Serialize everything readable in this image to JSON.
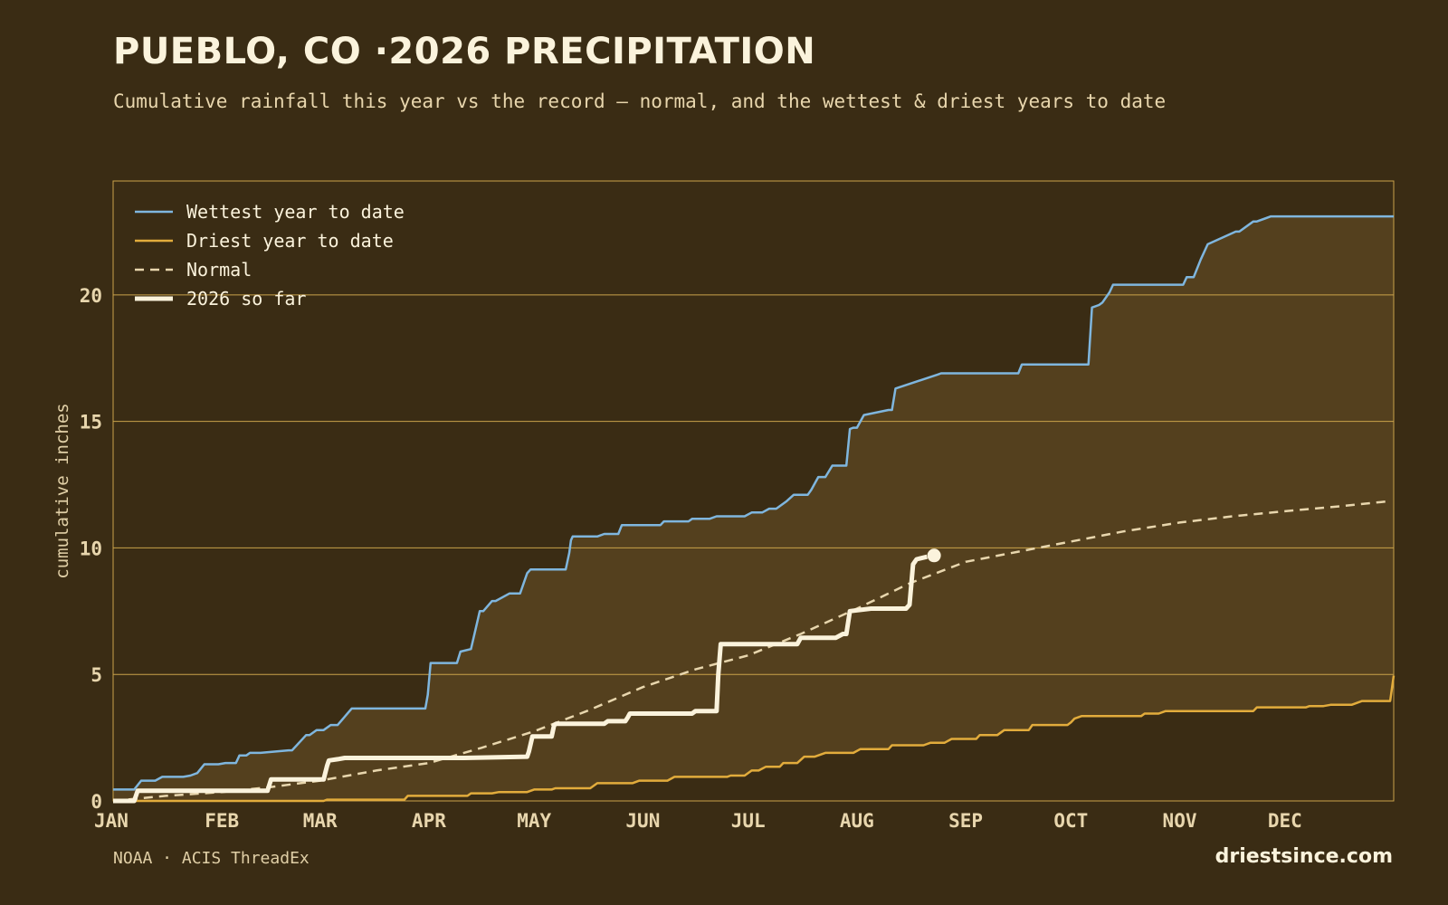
{
  "title": "PUEBLO, CO ·2026 PRECIPITATION",
  "subtitle": "Cumulative rainfall this year vs the record — normal, and the wettest & driest years to date",
  "source": "NOAA · ACIS ThreadEx",
  "brand": "driestsince.com",
  "colors": {
    "background": "#3a2c14",
    "band_fill": "#54401e",
    "grid": "#c9a24a",
    "wettest": "#7fb6de",
    "driest": "#e2ac3c",
    "normal": "#e8d6ad",
    "current": "#fbf3dc"
  },
  "chart_data": {
    "type": "line",
    "ylabel": "cumulative inches",
    "ylim": [
      0,
      24.5
    ],
    "yticks": [
      0,
      5,
      10,
      15,
      20
    ],
    "xlim": [
      0,
      365
    ],
    "month_labels": [
      "JAN",
      "FEB",
      "MAR",
      "APR",
      "MAY",
      "JUN",
      "JUL",
      "AUG",
      "SEP",
      "OCT",
      "NOV",
      "DEC"
    ],
    "month_start_days": [
      0,
      31,
      59,
      90,
      120,
      151,
      181,
      212,
      243,
      273,
      304,
      334
    ],
    "grid": "horizontal",
    "legend_position": "top-left",
    "shaded_band": "between driest and wettest",
    "series": [
      {
        "name": "Wettest year to date",
        "style": "solid",
        "x": [
          0,
          6,
          8,
          12,
          14,
          20,
          22,
          24,
          26,
          30,
          32,
          35,
          36,
          38,
          39,
          40,
          42,
          50,
          51,
          55,
          56,
          58,
          60,
          62,
          64,
          68,
          70,
          72,
          74,
          76,
          78,
          80,
          89,
          89.7,
          90.5,
          98,
          99,
          102,
          104,
          104.5,
          105.5,
          108,
          109,
          113,
          116,
          118,
          119,
          129,
          130,
          130.5,
          131,
          138,
          140,
          144,
          145,
          156,
          157,
          164,
          165,
          170,
          172,
          180,
          182,
          185,
          187,
          189,
          192,
          194,
          198,
          199,
          201,
          203,
          205,
          209,
          210,
          211,
          212,
          214,
          221,
          222,
          223,
          235,
          236,
          258,
          259,
          278,
          279,
          281,
          282,
          284,
          285,
          305,
          306,
          308,
          310,
          312,
          320,
          321,
          325,
          326,
          330,
          365
        ],
        "y": [
          0.45,
          0.45,
          0.8,
          0.8,
          0.95,
          0.95,
          1.0,
          1.1,
          1.45,
          1.45,
          1.5,
          1.5,
          1.8,
          1.8,
          1.9,
          1.9,
          1.9,
          2.0,
          2.0,
          2.6,
          2.6,
          2.8,
          2.8,
          3.0,
          3.0,
          3.65,
          3.65,
          3.65,
          3.65,
          3.65,
          3.65,
          3.65,
          3.65,
          4.2,
          5.45,
          5.45,
          5.9,
          6.0,
          7.2,
          7.5,
          7.5,
          7.9,
          7.9,
          8.2,
          8.2,
          9.0,
          9.15,
          9.15,
          9.8,
          10.3,
          10.45,
          10.45,
          10.55,
          10.55,
          10.9,
          10.9,
          11.05,
          11.05,
          11.15,
          11.15,
          11.25,
          11.25,
          11.4,
          11.4,
          11.55,
          11.55,
          11.85,
          12.1,
          12.1,
          12.3,
          12.8,
          12.8,
          13.25,
          13.25,
          14.7,
          14.75,
          14.75,
          15.25,
          15.45,
          15.45,
          16.3,
          16.85,
          16.9,
          16.9,
          17.25,
          17.25,
          19.5,
          19.6,
          19.7,
          20.1,
          20.4,
          20.4,
          20.7,
          20.7,
          21.4,
          22.0,
          22.5,
          22.5,
          22.9,
          22.9,
          23.1,
          23.1
        ]
      },
      {
        "name": "Driest year to date",
        "style": "solid",
        "x": [
          0,
          60,
          61,
          83,
          84,
          101,
          102,
          108,
          110,
          118,
          120,
          125,
          126,
          136,
          138,
          148,
          150,
          158,
          160,
          175,
          176,
          180,
          182,
          184,
          186,
          190,
          191,
          195,
          197,
          200,
          203,
          211,
          213,
          221,
          222,
          231,
          233,
          237,
          239,
          246,
          247,
          252,
          254,
          261,
          262,
          272,
          273,
          274,
          276,
          293,
          294,
          298,
          300,
          325,
          326,
          340,
          341,
          345,
          347,
          353,
          356,
          364,
          365
        ],
        "y": [
          0,
          0,
          0.05,
          0.05,
          0.2,
          0.2,
          0.3,
          0.3,
          0.35,
          0.35,
          0.45,
          0.45,
          0.5,
          0.5,
          0.7,
          0.7,
          0.8,
          0.8,
          0.95,
          0.95,
          1.0,
          1.0,
          1.2,
          1.2,
          1.35,
          1.35,
          1.5,
          1.5,
          1.75,
          1.75,
          1.9,
          1.9,
          2.05,
          2.05,
          2.2,
          2.2,
          2.3,
          2.3,
          2.45,
          2.45,
          2.6,
          2.6,
          2.8,
          2.8,
          3.0,
          3.0,
          3.1,
          3.25,
          3.35,
          3.35,
          3.45,
          3.45,
          3.55,
          3.55,
          3.7,
          3.7,
          3.75,
          3.75,
          3.8,
          3.8,
          3.95,
          3.95,
          4.95
        ]
      },
      {
        "name": "Normal",
        "style": "dashed",
        "x": [
          0,
          15,
          31,
          45,
          59,
          75,
          90,
          105,
          120,
          135,
          151,
          166,
          181,
          196,
          212,
          227,
          243,
          258,
          273,
          288,
          304,
          319,
          334,
          350,
          364
        ],
        "y": [
          0,
          0.2,
          0.35,
          0.55,
          0.8,
          1.2,
          1.5,
          2.1,
          2.75,
          3.55,
          4.5,
          5.2,
          5.75,
          6.6,
          7.6,
          8.6,
          9.45,
          9.85,
          10.25,
          10.65,
          11.0,
          11.25,
          11.45,
          11.65,
          11.85
        ]
      },
      {
        "name": "2026 so far",
        "style": "thick",
        "x": [
          0,
          6,
          7,
          15,
          20,
          30,
          35,
          42,
          44,
          45,
          60,
          61,
          61.5,
          64,
          66,
          100,
          118,
          118.5,
          119.5,
          125,
          125.7,
          126.3,
          140,
          141,
          146,
          146.7,
          147.3,
          165,
          166,
          171,
          172,
          172.5,
          173.2,
          195,
          196,
          206,
          208,
          209,
          210,
          216,
          226,
          227,
          228,
          229,
          232
        ],
        "y": [
          0,
          0,
          0.4,
          0.4,
          0.4,
          0.4,
          0.4,
          0.4,
          0.4,
          0.85,
          0.85,
          1.4,
          1.6,
          1.65,
          1.7,
          1.7,
          1.75,
          1.95,
          2.55,
          2.55,
          3.0,
          3.05,
          3.05,
          3.15,
          3.15,
          3.3,
          3.45,
          3.45,
          3.55,
          3.55,
          3.55,
          5.0,
          6.2,
          6.2,
          6.45,
          6.45,
          6.6,
          6.6,
          7.5,
          7.6,
          7.6,
          7.75,
          9.35,
          9.55,
          9.65
        ]
      }
    ],
    "current_marker": {
      "x": 234,
      "y": 9.7
    }
  }
}
